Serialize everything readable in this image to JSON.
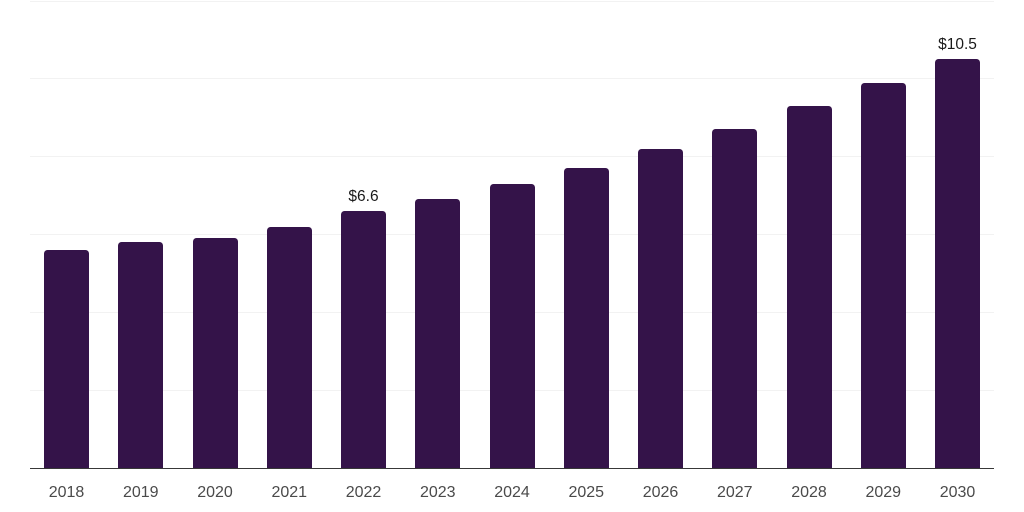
{
  "chart_data": {
    "type": "bar",
    "title": "",
    "xlabel": "",
    "ylabel": "",
    "categories": [
      "2018",
      "2019",
      "2020",
      "2021",
      "2022",
      "2023",
      "2024",
      "2025",
      "2026",
      "2027",
      "2028",
      "2029",
      "2030"
    ],
    "values": [
      5.6,
      5.8,
      5.9,
      6.2,
      6.6,
      6.9,
      7.3,
      7.7,
      8.2,
      8.7,
      9.3,
      9.9,
      10.5
    ],
    "point_labels": [
      "",
      "",
      "",
      "",
      "$6.6",
      "",
      "",
      "",
      "",
      "",
      "",
      "",
      "$10.5"
    ],
    "ylim": [
      0,
      12
    ],
    "grid_step": 2,
    "grid": "horizontal",
    "y_tick_labels_visible": false,
    "legend": "none",
    "colors": {
      "bar": "#341349",
      "gridline": "#f2f2f2",
      "axis_line": "#383838",
      "point_label_text": "#1a1a1a",
      "x_tick_text": "#4a4a4a",
      "background": "#ffffff"
    }
  }
}
